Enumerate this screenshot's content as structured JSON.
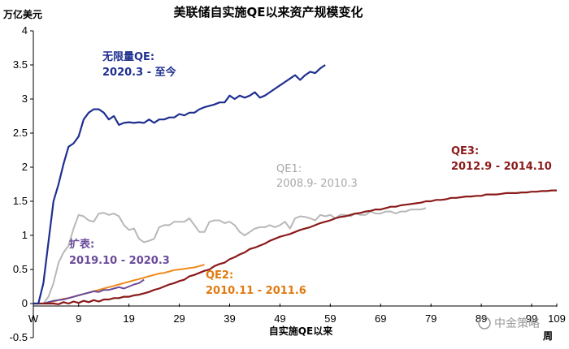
{
  "chart_data": {
    "type": "line",
    "title": "美联储自实施QE以来资产规模变化",
    "ylabel": "万亿美元",
    "xlabel": "自实施QE以来",
    "x_unit": "周",
    "ylim": [
      -0.5,
      4
    ],
    "yticks": [
      "-0.5",
      "0",
      "0.5",
      "1",
      "1.5",
      "2",
      "2.5",
      "3",
      "3.5",
      "4"
    ],
    "xlim": [
      0,
      104
    ],
    "xticks": [
      {
        "x": 0,
        "label": "W"
      },
      {
        "x": 9,
        "label": "9"
      },
      {
        "x": 19,
        "label": "19"
      },
      {
        "x": 29,
        "label": "29"
      },
      {
        "x": 39,
        "label": "39"
      },
      {
        "x": 49,
        "label": "49"
      },
      {
        "x": 59,
        "label": "59"
      },
      {
        "x": 69,
        "label": "69"
      },
      {
        "x": 79,
        "label": "79"
      },
      {
        "x": 89,
        "label": "89"
      },
      {
        "x": 99,
        "label": "99"
      },
      {
        "x": 109,
        "label": "109"
      }
    ],
    "series": [
      {
        "name": "无限量QE",
        "period": "2020.3 - 至今",
        "color": "#1f2f8f",
        "values": [
          0,
          0,
          0.3,
          0.9,
          1.5,
          1.75,
          2.05,
          2.3,
          2.35,
          2.45,
          2.7,
          2.8,
          2.85,
          2.85,
          2.8,
          2.7,
          2.75,
          2.62,
          2.65,
          2.66,
          2.65,
          2.66,
          2.65,
          2.7,
          2.65,
          2.7,
          2.7,
          2.73,
          2.73,
          2.78,
          2.76,
          2.8,
          2.8,
          2.85,
          2.88,
          2.9,
          2.92,
          2.95,
          2.95,
          3.05,
          3.0,
          3.05,
          3.02,
          3.05,
          3.1,
          3.02,
          3.05,
          3.1,
          3.15,
          3.2,
          3.25,
          3.3,
          3.35,
          3.28,
          3.35,
          3.4,
          3.38,
          3.45,
          3.5
        ]
      },
      {
        "name": "QE1",
        "period": "2008.9- 2010.3",
        "color": "#b8b8b8",
        "values": [
          0,
          0,
          0,
          0.1,
          0.3,
          0.6,
          0.75,
          0.85,
          1.1,
          1.3,
          1.28,
          1.22,
          1.2,
          1.32,
          1.33,
          1.3,
          1.32,
          1.28,
          1.15,
          1.08,
          1.1,
          0.95,
          0.9,
          0.92,
          0.95,
          1.12,
          1.15,
          1.15,
          1.2,
          1.2,
          1.2,
          1.25,
          1.15,
          1.05,
          1.05,
          1.2,
          1.22,
          1.22,
          1.18,
          1.2,
          1.15,
          1.05,
          1.0,
          1.05,
          1.1,
          1.12,
          1.12,
          1.15,
          1.12,
          1.15,
          1.2,
          1.1,
          1.25,
          1.28,
          1.27,
          1.25,
          1.22,
          1.3,
          1.28,
          1.3,
          1.25,
          1.3,
          1.3,
          1.28,
          1.32,
          1.3,
          1.3,
          1.35,
          1.32,
          1.32,
          1.35,
          1.35,
          1.32,
          1.35,
          1.35,
          1.38,
          1.38,
          1.38,
          1.4
        ]
      },
      {
        "name": "扩表",
        "period": "2019.10 - 2020.3",
        "color": "#6a4a9a",
        "values": [
          0,
          0,
          0,
          0.02,
          0.04,
          0.05,
          0.06,
          0.08,
          0.1,
          0.12,
          0.14,
          0.16,
          0.18,
          0.17,
          0.2,
          0.2,
          0.22,
          0.24,
          0.22,
          0.25,
          0.28,
          0.3,
          0.35
        ]
      },
      {
        "name": "QE2",
        "period": "2010.11 - 2011.6",
        "color": "#f08a1c",
        "values": [
          0,
          0,
          0,
          0.02,
          0.03,
          0.05,
          0.07,
          0.08,
          0.1,
          0.12,
          0.14,
          0.16,
          0.18,
          0.2,
          0.22,
          0.24,
          0.26,
          0.28,
          0.3,
          0.32,
          0.34,
          0.36,
          0.38,
          0.4,
          0.42,
          0.44,
          0.45,
          0.47,
          0.49,
          0.5,
          0.51,
          0.52,
          0.53,
          0.55,
          0.57
        ]
      },
      {
        "name": "QE3",
        "period": "2012.9 - 2014.10",
        "color": "#8b1a1a",
        "values": [
          0,
          0,
          0,
          0,
          0,
          -0.01,
          0.02,
          0.0,
          0.03,
          0.01,
          0.04,
          0.02,
          0.05,
          0.03,
          0.06,
          0.06,
          0.08,
          0.08,
          0.1,
          0.1,
          0.12,
          0.13,
          0.15,
          0.17,
          0.2,
          0.22,
          0.25,
          0.28,
          0.3,
          0.33,
          0.35,
          0.4,
          0.42,
          0.45,
          0.48,
          0.5,
          0.55,
          0.58,
          0.6,
          0.65,
          0.68,
          0.72,
          0.75,
          0.8,
          0.82,
          0.85,
          0.88,
          0.92,
          0.95,
          0.98,
          1.0,
          1.02,
          1.05,
          1.08,
          1.1,
          1.12,
          1.15,
          1.18,
          1.2,
          1.22,
          1.25,
          1.27,
          1.28,
          1.3,
          1.32,
          1.33,
          1.35,
          1.36,
          1.38,
          1.38,
          1.4,
          1.42,
          1.42,
          1.44,
          1.45,
          1.46,
          1.47,
          1.48,
          1.5,
          1.5,
          1.52,
          1.52,
          1.53,
          1.55,
          1.55,
          1.56,
          1.57,
          1.57,
          1.58,
          1.58,
          1.6,
          1.6,
          1.6,
          1.61,
          1.62,
          1.62,
          1.62,
          1.63,
          1.63,
          1.64,
          1.64,
          1.65,
          1.65,
          1.66,
          1.66
        ]
      }
    ],
    "annotations": {
      "unlimited_label": "无限量QE:",
      "unlimited_period": "2020.3 - 至今",
      "qe1_label": "QE1:",
      "qe1_period": "2008.9- 2010.3",
      "qe3_label": "QE3:",
      "qe3_period": "2012.9 - 2014.10",
      "expand_label": "扩表:",
      "expand_period": "2019.10 - 2020.3",
      "qe2_label": "QE2:",
      "qe2_period": "2010.11 - 2011.6"
    },
    "watermark": "中金策略"
  }
}
